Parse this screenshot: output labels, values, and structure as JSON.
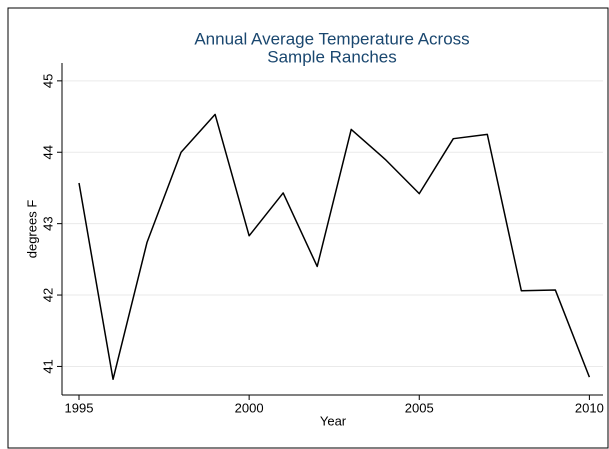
{
  "chart_data": {
    "type": "line",
    "title": [
      "Annual Average Temperature Across",
      "Sample Ranches"
    ],
    "x_label": "Year",
    "y_label": "degrees F",
    "x": [
      1995,
      1996,
      1997,
      1998,
      1999,
      2000,
      2001,
      2002,
      2003,
      2004,
      2005,
      2006,
      2007,
      2008,
      2009,
      2010
    ],
    "series": [
      {
        "color": "#000000",
        "values": [
          43.57,
          40.82,
          42.74,
          44.0,
          44.53,
          42.83,
          43.43,
          42.4,
          44.32,
          43.9,
          43.42,
          44.19,
          44.25,
          42.06,
          42.07,
          40.85
        ]
      }
    ],
    "xlim": [
      1994.5,
      2010.4
    ],
    "xticks": [
      1995,
      2000,
      2005,
      2010
    ],
    "ylim": [
      40.6,
      45.25
    ],
    "yticks": [
      41,
      42,
      43,
      44,
      45
    ],
    "grid": true
  }
}
